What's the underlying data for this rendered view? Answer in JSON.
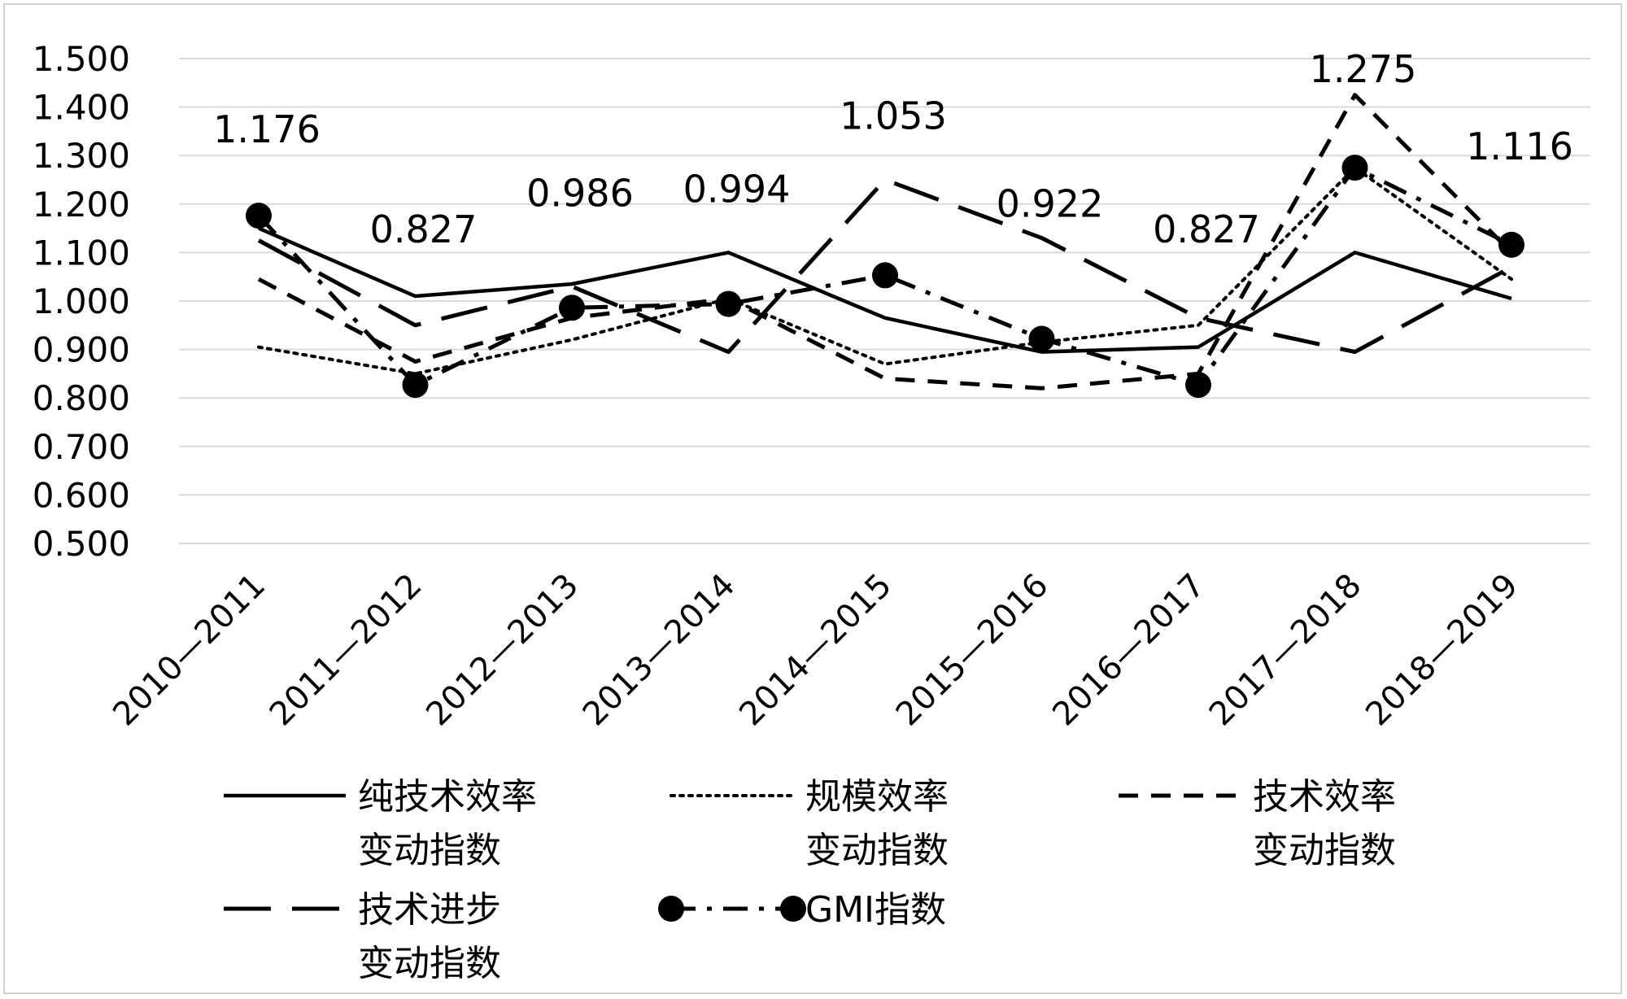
{
  "chart_data": {
    "type": "line",
    "title": "",
    "xlabel": "",
    "ylabel": "",
    "categories": [
      "2010—2011",
      "2011—2012",
      "2012—2013",
      "2013—2014",
      "2014—2015",
      "2015—2016",
      "2016—2017",
      "2017—2018",
      "2018—2019"
    ],
    "y_tick_labels": [
      "1.500",
      "1.400",
      "1.300",
      "1.200",
      "1.100",
      "1.000",
      "0.900",
      "0.800",
      "0.700",
      "0.600",
      "0.500"
    ],
    "ylim": [
      0.5,
      1.5
    ],
    "grid": true,
    "legend_position": "bottom",
    "series": [
      {
        "name": "纯技术效率变动指数",
        "name_lines": [
          "纯技术效率",
          "变动指数"
        ],
        "style": "solid",
        "values": [
          1.15,
          1.01,
          1.035,
          1.1,
          0.965,
          0.895,
          0.905,
          1.1,
          1.005
        ]
      },
      {
        "name": "规模效率变动指数",
        "name_lines": [
          "规模效率",
          "变动指数"
        ],
        "style": "dotted",
        "values": [
          0.905,
          0.85,
          0.92,
          1.005,
          0.87,
          0.915,
          0.95,
          1.275,
          1.045
        ]
      },
      {
        "name": "技术效率变动指数",
        "name_lines": [
          "技术效率",
          "变动指数"
        ],
        "style": "dashed",
        "values": [
          1.045,
          0.875,
          0.965,
          1.005,
          0.84,
          0.82,
          0.85,
          1.425,
          1.1
        ]
      },
      {
        "name": "技术进步变动指数",
        "name_lines": [
          "技术进步",
          "变动指数"
        ],
        "style": "longdash",
        "values": [
          1.125,
          0.95,
          1.03,
          0.895,
          1.25,
          1.13,
          0.965,
          0.895,
          1.07
        ]
      },
      {
        "name": "GMI指数",
        "name_lines": [
          "GMI指数"
        ],
        "style": "dashdot-marker",
        "values": [
          1.176,
          0.827,
          0.986,
          0.994,
          1.053,
          0.922,
          0.827,
          1.275,
          1.116
        ]
      }
    ],
    "data_labels": [
      "1.176",
      "0.827",
      "0.986",
      "0.994",
      "1.053",
      "0.922",
      "0.827",
      "1.275",
      "1.116"
    ]
  }
}
